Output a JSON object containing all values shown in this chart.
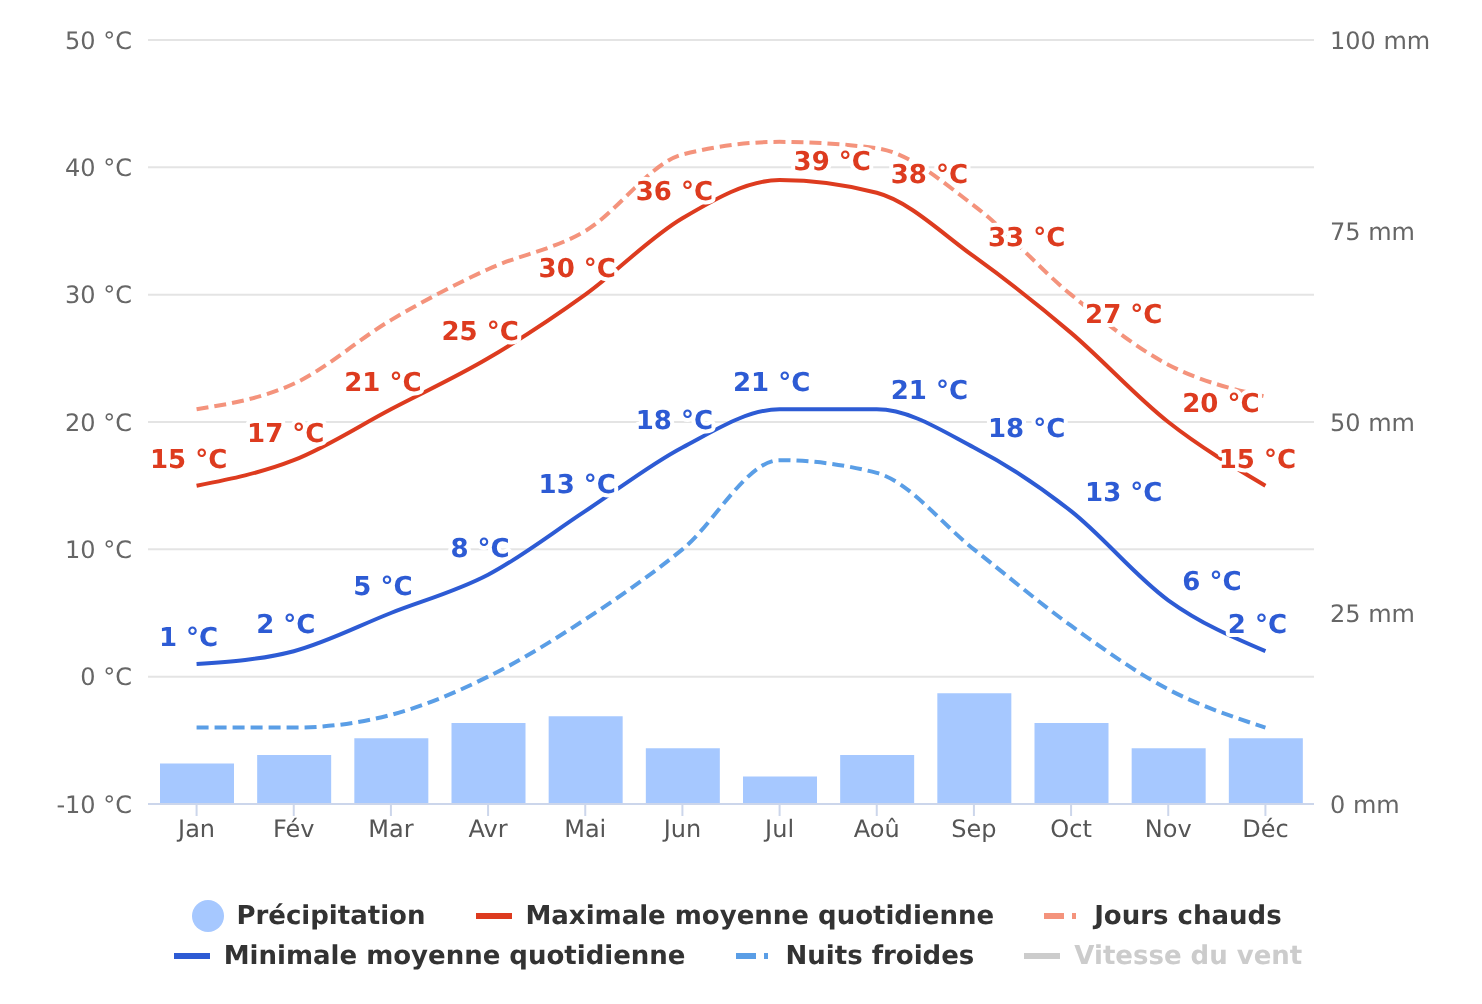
{
  "chart_data": {
    "type": "line",
    "categories": [
      "Jan",
      "Fév",
      "Mar",
      "Avr",
      "Mai",
      "Jun",
      "Jul",
      "Aoû",
      "Sep",
      "Oct",
      "Nov",
      "Déc"
    ],
    "series": [
      {
        "name": "Précipitation",
        "type": "bar",
        "axis": "y2",
        "color": "#a6c8ff",
        "values": [
          5.3,
          6.4,
          8.6,
          10.6,
          11.5,
          7.3,
          3.6,
          6.4,
          14.5,
          10.6,
          7.3,
          8.6
        ]
      },
      {
        "name": "Maximale moyenne quotidienne",
        "color": "#dd3b1f",
        "line_style": "solid",
        "values": [
          15,
          17,
          21,
          25,
          30,
          36,
          39,
          38,
          33,
          27,
          20,
          15
        ],
        "value_labels": [
          "15 °C",
          "17 °C",
          "21 °C",
          "25 °C",
          "30 °C",
          "36 °C",
          "39 °C",
          "38 °C",
          "33 °C",
          "27 °C",
          "20 °C",
          "15 °C"
        ]
      },
      {
        "name": "Jours chauds",
        "color": "#f4937c",
        "line_style": "dashed",
        "values": [
          21,
          23,
          28,
          32,
          35,
          41,
          42,
          41.5,
          37,
          30,
          24.5,
          22
        ]
      },
      {
        "name": "Minimale moyenne quotidienne",
        "color": "#2d5bd4",
        "line_style": "solid",
        "values": [
          1,
          2,
          5,
          8,
          13,
          18,
          21,
          21,
          18,
          13,
          6,
          2
        ],
        "value_labels": [
          "1 °C",
          "2 °C",
          "5 °C",
          "8 °C",
          "13 °C",
          "18 °C",
          "21 °C",
          "21 °C",
          "18 °C",
          "13 °C",
          "6 °C",
          "2 °C"
        ]
      },
      {
        "name": "Nuits froides",
        "color": "#5a9ee6",
        "line_style": "dashed",
        "values": [
          -4,
          -4,
          -3,
          0,
          4.5,
          10,
          17,
          16,
          10,
          4,
          -1,
          -4
        ]
      },
      {
        "name": "Vitesse du vent",
        "color": "#cccccc",
        "line_style": "solid",
        "values": [
          null,
          null,
          null,
          null,
          null,
          null,
          null,
          null,
          null,
          null,
          null,
          null
        ]
      }
    ],
    "ylim": [
      -10,
      50
    ],
    "yticks": [
      {
        "value": -10,
        "label": "-10 °C"
      },
      {
        "value": 0,
        "label": "0 °C"
      },
      {
        "value": 10,
        "label": "10 °C"
      },
      {
        "value": 20,
        "label": "20 °C"
      },
      {
        "value": 30,
        "label": "30 °C"
      },
      {
        "value": 40,
        "label": "40 °C"
      },
      {
        "value": 50,
        "label": "50 °C"
      }
    ],
    "y2lim": [
      0,
      100
    ],
    "y2ticks": [
      {
        "value": 0,
        "label": "0 mm"
      },
      {
        "value": 25,
        "label": "25 mm"
      },
      {
        "value": 50,
        "label": "50 mm"
      },
      {
        "value": 75,
        "label": "75 mm"
      },
      {
        "value": 100,
        "label": "100 mm"
      }
    ],
    "grid": "y",
    "legend": "bottom",
    "marker": "none"
  }
}
